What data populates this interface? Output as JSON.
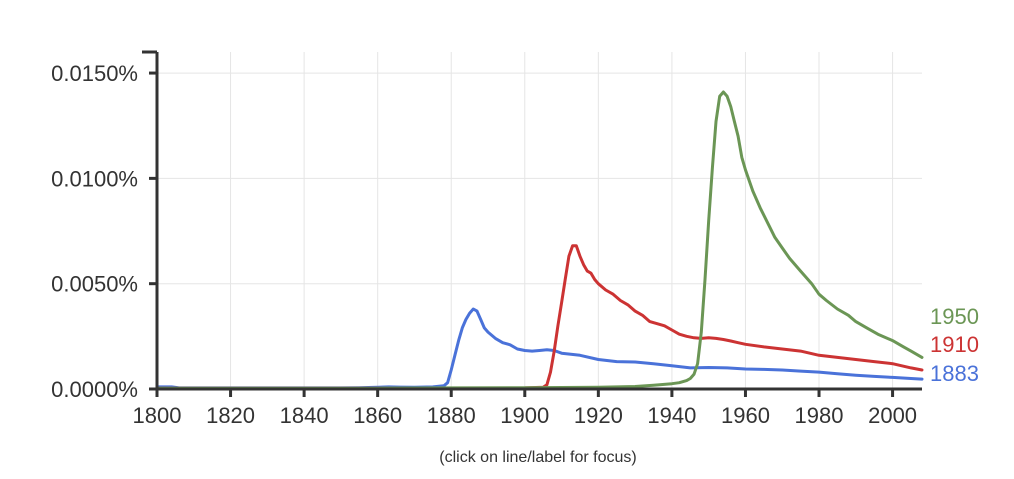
{
  "chart_data": {
    "type": "line",
    "x_range": [
      1800,
      2008
    ],
    "y_range": [
      0,
      0.016
    ],
    "x_ticks": [
      1800,
      1820,
      1840,
      1860,
      1880,
      1900,
      1920,
      1940,
      1960,
      1980,
      2000
    ],
    "y_ticks": [
      {
        "value": 0,
        "label": "0.0000%"
      },
      {
        "value": 0.005,
        "label": "0.0050%"
      },
      {
        "value": 0.01,
        "label": "0.0100%"
      },
      {
        "value": 0.015,
        "label": "0.0150%"
      }
    ],
    "grid": true,
    "legend_placement": "right-end",
    "series": [
      {
        "name": "1883",
        "color": "#4a72d9",
        "x": [
          1800,
          1802,
          1804,
          1806,
          1810,
          1820,
          1840,
          1850,
          1855,
          1860,
          1863,
          1866,
          1870,
          1875,
          1878,
          1879,
          1880,
          1881,
          1882,
          1883,
          1884,
          1885,
          1886,
          1887,
          1888,
          1889,
          1890,
          1892,
          1894,
          1896,
          1898,
          1900,
          1902,
          1904,
          1906,
          1908,
          1910,
          1915,
          1920,
          1925,
          1930,
          1935,
          1940,
          1945,
          1950,
          1955,
          1960,
          1965,
          1970,
          1975,
          1980,
          1985,
          1990,
          1995,
          2000,
          2005,
          2008
        ],
        "values": [
          0.0001,
          0.0001,
          0.0001,
          5e-05,
          5e-05,
          5e-05,
          5e-05,
          5e-05,
          6e-05,
          8e-05,
          0.0001,
          9e-05,
          8e-05,
          0.0001,
          0.00015,
          0.0003,
          0.0009,
          0.0016,
          0.0023,
          0.0029,
          0.0033,
          0.0036,
          0.0038,
          0.0037,
          0.0033,
          0.0029,
          0.0027,
          0.0024,
          0.0022,
          0.0021,
          0.0019,
          0.00183,
          0.0018,
          0.00183,
          0.00186,
          0.00183,
          0.0017,
          0.0016,
          0.0014,
          0.0013,
          0.00128,
          0.0012,
          0.0011,
          0.001,
          0.00102,
          0.001,
          0.00095,
          0.00093,
          0.0009,
          0.00085,
          0.0008,
          0.00072,
          0.00065,
          0.0006,
          0.00055,
          0.0005,
          0.00047
        ]
      },
      {
        "name": "1910",
        "color": "#cc3333",
        "x": [
          1800,
          1820,
          1840,
          1860,
          1880,
          1890,
          1900,
          1905,
          1906,
          1907,
          1908,
          1909,
          1910,
          1911,
          1912,
          1913,
          1914,
          1915,
          1916,
          1917,
          1918,
          1919,
          1920,
          1922,
          1924,
          1926,
          1928,
          1930,
          1932,
          1934,
          1936,
          1938,
          1940,
          1942,
          1944,
          1946,
          1948,
          1950,
          1952,
          1954,
          1956,
          1958,
          1960,
          1965,
          1970,
          1975,
          1980,
          1985,
          1990,
          1995,
          2000,
          2005,
          2008
        ],
        "values": [
          4e-05,
          4e-05,
          4e-05,
          4e-05,
          4e-05,
          4e-05,
          5e-05,
          8e-05,
          0.0002,
          0.0008,
          0.0018,
          0.003,
          0.0041,
          0.0052,
          0.0063,
          0.0068,
          0.0068,
          0.0063,
          0.0059,
          0.0056,
          0.0055,
          0.0052,
          0.005,
          0.0047,
          0.0045,
          0.0042,
          0.004,
          0.0037,
          0.0035,
          0.0032,
          0.0031,
          0.003,
          0.0028,
          0.0026,
          0.0025,
          0.00243,
          0.0024,
          0.00243,
          0.0024,
          0.00235,
          0.00228,
          0.0022,
          0.00212,
          0.002,
          0.0019,
          0.0018,
          0.0016,
          0.0015,
          0.0014,
          0.0013,
          0.0012,
          0.001,
          0.0009
        ]
      },
      {
        "name": "1950",
        "color": "#6b9655",
        "x": [
          1800,
          1820,
          1840,
          1860,
          1880,
          1900,
          1910,
          1920,
          1930,
          1935,
          1940,
          1942,
          1944,
          1945,
          1946,
          1947,
          1948,
          1949,
          1950,
          1951,
          1952,
          1953,
          1954,
          1955,
          1956,
          1957,
          1958,
          1959,
          1960,
          1962,
          1964,
          1966,
          1968,
          1970,
          1972,
          1975,
          1978,
          1980,
          1982,
          1985,
          1988,
          1990,
          1993,
          1996,
          2000,
          2003,
          2005,
          2008
        ],
        "values": [
          4e-05,
          4e-05,
          4e-05,
          4e-05,
          5e-05,
          6e-05,
          7e-05,
          8e-05,
          0.00012,
          0.00018,
          0.00025,
          0.0003,
          0.0004,
          0.0005,
          0.0007,
          0.0012,
          0.0027,
          0.0052,
          0.008,
          0.0105,
          0.0127,
          0.0139,
          0.0141,
          0.0139,
          0.0134,
          0.0127,
          0.012,
          0.011,
          0.0104,
          0.0094,
          0.0086,
          0.0079,
          0.0072,
          0.0067,
          0.0062,
          0.0056,
          0.005,
          0.0045,
          0.0042,
          0.0038,
          0.0035,
          0.0032,
          0.0029,
          0.0026,
          0.0023,
          0.002,
          0.0018,
          0.0015
        ]
      }
    ]
  },
  "note": "(click on line/label for focus)"
}
